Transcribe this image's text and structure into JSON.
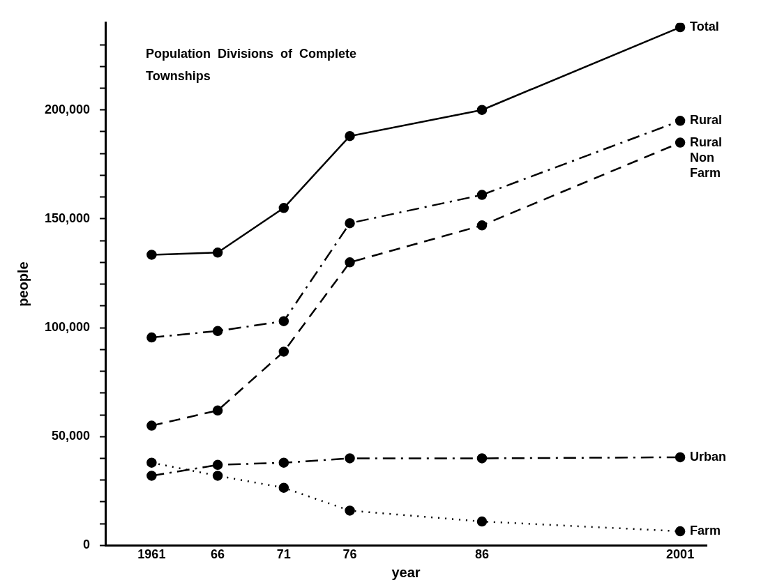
{
  "chart_data": {
    "type": "line",
    "title": "Population Divisions of Complete Townships",
    "xlabel": "year",
    "ylabel": "people",
    "x": [
      1961,
      1966,
      1971,
      1976,
      1986,
      2001
    ],
    "xlim": [
      1957.5,
      2003
    ],
    "xticks": [
      1961,
      {
        "value": 1966,
        "label": "66"
      },
      {
        "value": 1971,
        "label": "71"
      },
      {
        "value": 1976,
        "label": "76"
      },
      {
        "value": 1986,
        "label": "86"
      },
      2001
    ],
    "ylim": [
      0,
      240000
    ],
    "yticks": [
      0,
      {
        "value": 10000,
        "label": null
      },
      {
        "value": 20000,
        "label": null
      },
      {
        "value": 30000,
        "label": null
      },
      {
        "value": 40000,
        "label": null
      },
      {
        "value": 50000,
        "label": "50,000"
      },
      {
        "value": 60000,
        "label": null
      },
      {
        "value": 70000,
        "label": null
      },
      {
        "value": 80000,
        "label": null
      },
      {
        "value": 90000,
        "label": null
      },
      {
        "value": 100000,
        "label": "100,000"
      },
      {
        "value": 110000,
        "label": null
      },
      {
        "value": 120000,
        "label": null
      },
      {
        "value": 130000,
        "label": null
      },
      {
        "value": 140000,
        "label": null
      },
      {
        "value": 150000,
        "label": "150,000"
      },
      {
        "value": 160000,
        "label": null
      },
      {
        "value": 170000,
        "label": null
      },
      {
        "value": 180000,
        "label": null
      },
      {
        "value": 190000,
        "label": null
      },
      {
        "value": 200000,
        "label": "200,000"
      },
      {
        "value": 210000,
        "label": null
      },
      {
        "value": 220000,
        "label": null
      },
      {
        "value": 230000,
        "label": null
      }
    ],
    "grid": false,
    "legend": false,
    "marker": "circle",
    "series": [
      {
        "name": "Total",
        "color": "#000000",
        "line_style": "solid",
        "values": [
          133500,
          134500,
          155000,
          188000,
          200000,
          238000
        ]
      },
      {
        "name": "Rural",
        "color": "#000000",
        "line_style": "dashdot",
        "values": [
          95500,
          98500,
          103000,
          148000,
          161000,
          195000
        ]
      },
      {
        "name": "Rural Non Farm",
        "color": "#000000",
        "line_style": "dashed",
        "values": [
          55000,
          62000,
          89000,
          130000,
          147000,
          185000
        ]
      },
      {
        "name": "Urban",
        "color": "#000000",
        "line_style": "dashdot",
        "values": [
          32000,
          37000,
          38000,
          40000,
          40000,
          40500
        ]
      },
      {
        "name": "Farm",
        "color": "#000000",
        "line_style": "dotted",
        "values": [
          38000,
          32000,
          26500,
          16000,
          11000,
          6500
        ]
      }
    ]
  }
}
